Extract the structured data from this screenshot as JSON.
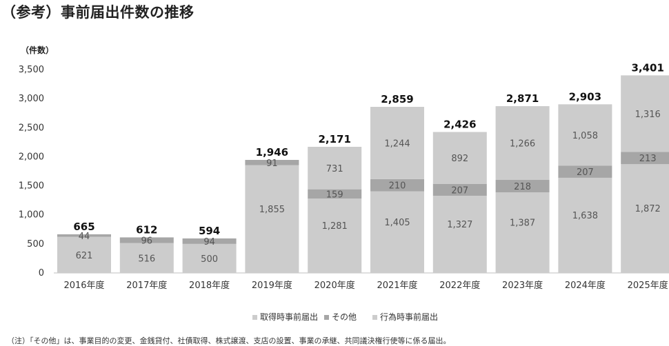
{
  "title": "（参考）事前届出件数の推移",
  "note": "（注）「その他」は、事業目的の変更、金銭貸付、社債取得、株式譲渡、支店の設置、事業の承継、共同議決権行使等に係る届出。",
  "colors": {
    "acquire": "#cccccc",
    "other": "#a6a6a6",
    "act": "#cccccc",
    "axis": "#bfbfbf"
  },
  "chart_data": {
    "type": "bar",
    "stacked": true,
    "unit_label": "（件数）",
    "categories": [
      "2016年度",
      "2017年度",
      "2018年度",
      "2019年度",
      "2020年度",
      "2021年度",
      "2022年度",
      "2023年度",
      "2024年度",
      "2025年度"
    ],
    "yticks": [
      "0",
      "500",
      "1,000",
      "1,500",
      "2,000",
      "2,500",
      "3,000",
      "3,500"
    ],
    "ylim": [
      0,
      3500
    ],
    "series": [
      {
        "name": "取得時事前届出",
        "values": [
          621,
          516,
          500,
          1855,
          1281,
          1405,
          1327,
          1387,
          1638,
          1872
        ],
        "labels": [
          "621",
          "516",
          "500",
          "1,855",
          "1,281",
          "1,405",
          "1,327",
          "1,387",
          "1,638",
          "1,872"
        ]
      },
      {
        "name": "その他",
        "values": [
          44,
          96,
          94,
          91,
          159,
          210,
          207,
          218,
          207,
          213
        ],
        "labels": [
          "44",
          "96",
          "94",
          "91",
          "159",
          "210",
          "207",
          "218",
          "207",
          "213"
        ]
      },
      {
        "name": "行為時事前届出",
        "values": [
          0,
          0,
          0,
          0,
          731,
          1244,
          892,
          1266,
          1058,
          1316
        ],
        "labels": [
          "",
          "",
          "",
          "",
          "731",
          "1,244",
          "892",
          "1,266",
          "1,058",
          "1,316"
        ]
      }
    ],
    "totals": [
      "665",
      "612",
      "594",
      "1,946",
      "2,171",
      "2,859",
      "2,426",
      "2,871",
      "2,903",
      "3,401"
    ],
    "legend_position": "bottom",
    "grid": false
  }
}
